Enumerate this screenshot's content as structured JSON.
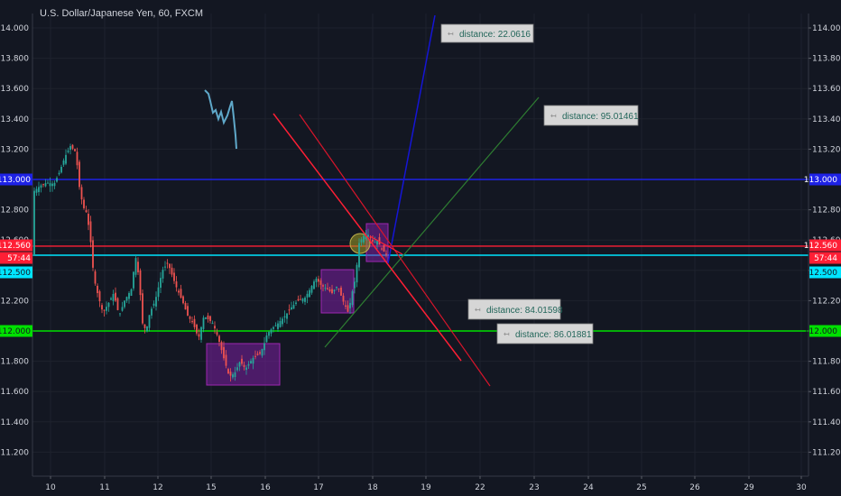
{
  "chart_data": {
    "type": "candlestick",
    "title": "U.S. Dollar/Japanese Yen, 60, FXCM",
    "y_axis": {
      "ticks": [
        "114.000",
        "113.800",
        "113.600",
        "113.400",
        "113.200",
        "113.000",
        "112.800",
        "112.600",
        "112.400",
        "112.200",
        "112.000",
        "111.800",
        "111.600",
        "111.400",
        "111.200"
      ],
      "range": [
        111.05,
        114.15
      ]
    },
    "x_axis": {
      "ticks": [
        "10",
        "11",
        "12",
        "15",
        "16",
        "17",
        "18",
        "19",
        "22",
        "23",
        "24",
        "25",
        "26",
        "29",
        "30"
      ]
    },
    "price_tags": {
      "left": [
        {
          "label": "113.000",
          "bg": "#1e22e6",
          "fg": "#ffffff"
        },
        {
          "label": "112.560",
          "bg": "#ff1f35",
          "fg": "#ffffff"
        },
        {
          "label": "57:44",
          "bg": "#ff1f35",
          "fg": "#ffffff"
        },
        {
          "label": "112.500",
          "bg": "#00e5ff",
          "fg": "#131722"
        },
        {
          "label": "112.000",
          "bg": "#00e000",
          "fg": "#131722"
        }
      ],
      "right": [
        {
          "label": "113.000",
          "bg": "#1e22e6",
          "fg": "#ffffff"
        },
        {
          "label": "112.560",
          "bg": "#ff1f35",
          "fg": "#ffffff"
        },
        {
          "label": "57:44",
          "bg": "#ff1f35",
          "fg": "#ffffff"
        },
        {
          "label": "112.500",
          "bg": "#00e5ff",
          "fg": "#131722"
        },
        {
          "label": "112.000",
          "bg": "#00e000",
          "fg": "#131722"
        }
      ]
    },
    "horizontal_lines": [
      {
        "price": 113.0,
        "color": "#1e22e6"
      },
      {
        "price": 112.56,
        "color": "#ff1f35"
      },
      {
        "price": 112.5,
        "color": "#00e5ff"
      },
      {
        "price": 112.0,
        "color": "#00e000"
      }
    ],
    "annotations": [
      {
        "text": "distance: 22.0616"
      },
      {
        "text": "distance: 95.01461"
      },
      {
        "text": "distance: 84.01598"
      },
      {
        "text": "distance: 86.01881"
      }
    ],
    "grid": true,
    "up_color": "#26a69a",
    "down_color": "#ef5350"
  }
}
